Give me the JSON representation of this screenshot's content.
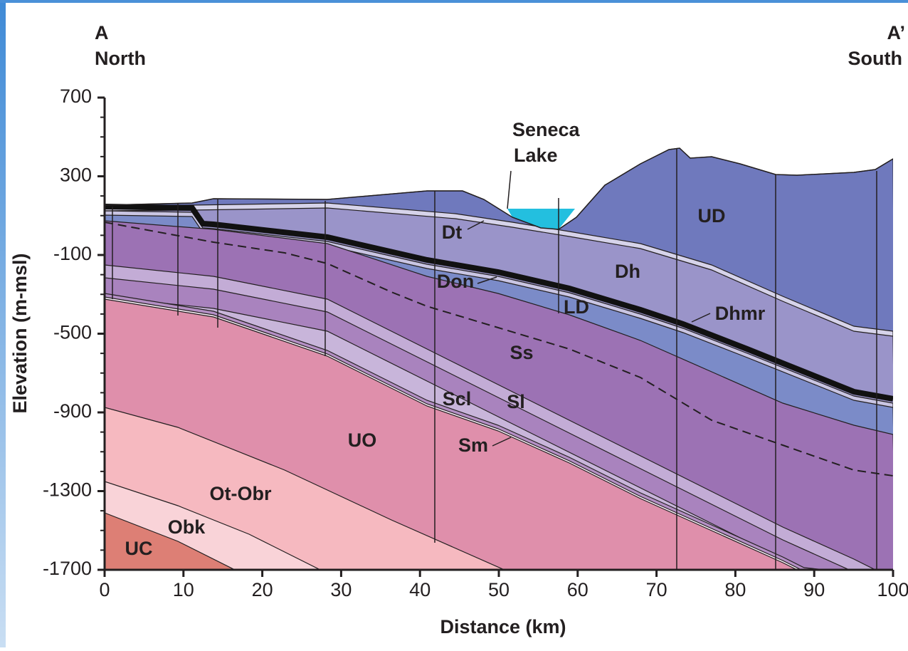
{
  "corners": {
    "left": {
      "letter": "A",
      "direction": "North"
    },
    "right": {
      "letter": "A’",
      "direction": "South"
    }
  },
  "lake_label": [
    "Seneca",
    "Lake"
  ],
  "units": [
    "UD",
    "Dt",
    "Dh",
    "Don",
    "LD",
    "Dhmr",
    "Ss",
    "Scl",
    "Sl",
    "UO",
    "Sm",
    "Ot-Obr",
    "Obk",
    "UC"
  ],
  "axes": {
    "x_title": "Distance (km)",
    "y_title": "Elevation (m-msl)",
    "xlim": [
      0,
      100
    ],
    "ylim": [
      -1700,
      700
    ],
    "xticks": [
      0,
      10,
      20,
      30,
      40,
      50,
      60,
      70,
      80,
      90,
      100
    ],
    "yticks": [
      700,
      300,
      -100,
      -500,
      -900,
      -1300,
      -1700
    ]
  }
}
